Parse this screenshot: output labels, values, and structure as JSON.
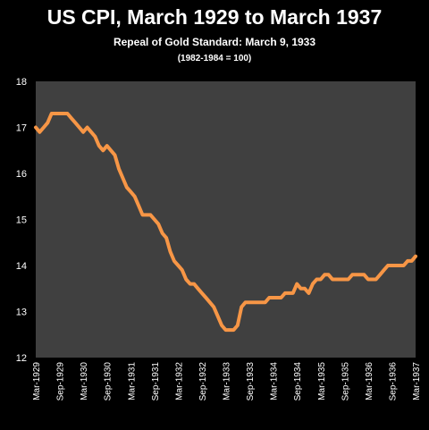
{
  "title": "US CPI, March 1929 to March 1937",
  "subtitle": "Repeal of Gold Standard:  March 9, 1933",
  "note": "(1982-1984 = 100)",
  "chart_data": {
    "type": "line",
    "title": "US CPI, March 1929 to March 1937",
    "subtitle": "Repeal of Gold Standard:  March 9, 1933",
    "xlabel": "",
    "ylabel": "",
    "ylim": [
      12,
      18
    ],
    "yticks": [
      12,
      13,
      14,
      15,
      16,
      17,
      18
    ],
    "grid": false,
    "legend": "none",
    "line_color": "#f79646",
    "plot_bg": "#404040",
    "x_tick_labels": [
      "Mar-1929",
      "Sep-1929",
      "Mar-1930",
      "Sep-1930",
      "Mar-1931",
      "Sep-1931",
      "Mar-1932",
      "Sep-1932",
      "Mar-1933",
      "Sep-1933",
      "Mar-1934",
      "Sep-1934",
      "Mar-1935",
      "Sep-1935",
      "Mar-1936",
      "Sep-1936",
      "Mar-1937"
    ],
    "series": [
      {
        "start": "1929-03",
        "values": [
          17.0,
          16.9,
          17.0,
          17.1,
          17.3,
          17.3,
          17.3,
          17.3,
          17.3,
          17.2,
          17.1,
          17.0,
          16.9,
          17.0,
          16.9,
          16.8,
          16.6,
          16.5,
          16.6,
          16.5,
          16.4,
          16.1,
          15.9,
          15.7,
          15.6,
          15.5,
          15.3,
          15.1,
          15.1,
          15.1,
          15.0,
          14.9,
          14.7,
          14.6,
          14.3,
          14.1,
          14.0,
          13.9,
          13.7,
          13.6,
          13.6,
          13.5,
          13.4,
          13.3,
          13.2,
          13.1,
          12.9,
          12.7,
          12.6,
          12.6,
          12.6,
          12.7,
          13.1,
          13.2,
          13.2,
          13.2,
          13.2,
          13.2,
          13.2,
          13.3,
          13.3,
          13.3,
          13.3,
          13.4,
          13.4,
          13.4,
          13.6,
          13.5,
          13.5,
          13.4,
          13.6,
          13.7,
          13.7,
          13.8,
          13.8,
          13.7,
          13.7,
          13.7,
          13.7,
          13.7,
          13.8,
          13.8,
          13.8,
          13.8,
          13.7,
          13.7,
          13.7,
          13.8,
          13.9,
          14.0,
          14.0,
          14.0,
          14.0,
          14.0,
          14.1,
          14.1,
          14.2
        ]
      }
    ]
  }
}
